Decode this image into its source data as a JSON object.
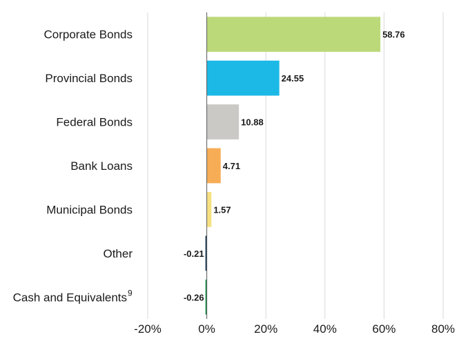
{
  "chart_data": {
    "type": "bar",
    "orientation": "horizontal",
    "categories": [
      "Corporate Bonds",
      "Provincial Bonds",
      "Federal Bonds",
      "Bank Loans",
      "Municipal Bonds",
      "Other",
      "Cash and Equivalents"
    ],
    "category_superscripts": [
      "",
      "",
      "",
      "",
      "",
      "",
      "9"
    ],
    "values": [
      58.76,
      24.55,
      10.88,
      4.71,
      1.57,
      -0.21,
      -0.26
    ],
    "value_labels": [
      "58.76",
      "24.55",
      "10.88",
      "4.71",
      "1.57",
      "-0.21",
      "-0.26"
    ],
    "colors": [
      "#bcd97a",
      "#1cb9e6",
      "#cbc9c6",
      "#f7ad55",
      "#f7e082",
      "#1b3b5a",
      "#1f9a4e"
    ],
    "xlim": [
      -20,
      80
    ],
    "x_ticks": [
      -20,
      0,
      20,
      40,
      60,
      80
    ],
    "x_tick_labels": [
      "-20%",
      "0%",
      "20%",
      "40%",
      "60%",
      "80%"
    ],
    "grid": "vertical",
    "gridline_color": "#d9d9d9",
    "axis_line_color": "#555555"
  }
}
